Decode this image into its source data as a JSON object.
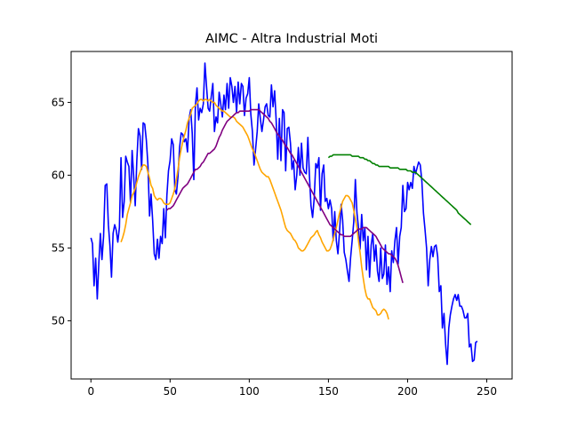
{
  "chart_data": {
    "type": "line",
    "title": "AIMC - Altra Industrial Moti",
    "xlabel": "",
    "ylabel": "",
    "xlim": [
      -12.5,
      266
    ],
    "ylim": [
      46.0,
      68.5
    ],
    "x_ticks": [
      0,
      50,
      100,
      150,
      200,
      250
    ],
    "y_ticks": [
      50,
      55,
      60,
      65
    ],
    "grid": false,
    "legend": "none",
    "series": [
      {
        "color": "#0000ff",
        "x0": 0,
        "values": [
          55.7,
          55.3,
          52.4,
          54.3,
          51.5,
          54.0,
          56.0,
          54.2,
          55.8,
          59.3,
          59.4,
          56.6,
          55.2,
          53.0,
          56.0,
          56.6,
          56.2,
          55.4,
          56.4,
          61.2,
          57.1,
          58.2,
          61.3,
          60.9,
          60.6,
          58.1,
          61.7,
          60.0,
          57.9,
          61.0,
          63.2,
          62.7,
          60.4,
          63.6,
          63.5,
          62.4,
          60.7,
          57.2,
          58.7,
          56.9,
          54.6,
          54.2,
          55.6,
          54.3,
          55.8,
          55.3,
          57.7,
          55.7,
          58.6,
          60.3,
          61.0,
          62.5,
          62.1,
          59.0,
          58.7,
          59.9,
          61.9,
          62.9,
          62.8,
          62.3,
          62.5,
          61.6,
          63.9,
          64.5,
          62.9,
          59.7,
          64.8,
          66.0,
          63.8,
          64.6,
          64.3,
          64.9,
          67.7,
          66.1,
          64.6,
          64.4,
          65.4,
          66.3,
          63.0,
          64.0,
          63.6,
          65.7,
          64.9,
          64.0,
          65.5,
          64.5,
          66.3,
          64.6,
          66.7,
          66.1,
          65.0,
          66.1,
          64.3,
          66.4,
          64.9,
          66.3,
          66.1,
          64.1,
          65.3,
          65.6,
          66.7,
          64.2,
          63.0,
          60.7,
          61.8,
          63.0,
          64.9,
          63.9,
          63.0,
          63.8,
          64.7,
          64.9,
          64.1,
          64.0,
          66.2,
          64.7,
          65.8,
          63.8,
          61.1,
          63.9,
          61.0,
          64.5,
          64.3,
          60.3,
          63.2,
          63.3,
          62.2,
          60.4,
          61.0,
          59.0,
          60.0,
          61.9,
          60.0,
          62.2,
          60.5,
          60.2,
          60.1,
          62.6,
          60.0,
          57.9,
          57.1,
          58.4,
          60.8,
          60.5,
          61.2,
          57.6,
          60.1,
          60.7,
          58.2,
          58.4,
          57.7,
          58.3,
          57.7,
          55.5,
          57.5,
          55.5,
          54.6,
          56.1,
          58.0,
          56.9,
          54.7,
          54.2,
          53.4,
          52.7,
          54.3,
          55.5,
          56.8,
          59.7,
          57.4,
          56.4,
          54.9,
          57.3,
          55.5,
          56.4,
          53.5,
          55.8,
          53.0,
          55.2,
          56.0,
          54.1,
          55.2,
          53.4,
          52.7,
          55.0,
          52.9,
          53.2,
          55.2,
          52.5,
          53.7,
          52.0,
          54.8,
          54.0,
          55.5,
          56.4,
          53.9,
          55.8,
          56.4,
          59.3,
          57.5,
          57.7,
          59.5,
          59.0,
          59.5,
          59.1,
          60.6,
          60.1,
          60.5,
          60.9,
          60.7,
          59.6,
          57.4,
          56.3,
          55.0,
          52.4,
          54.2,
          55.1,
          54.4,
          55.1,
          55.2,
          54.4,
          52.0,
          52.4,
          49.5,
          50.5,
          48.4,
          47.0,
          49.5,
          50.4,
          51.0,
          51.5,
          51.8,
          51.4,
          51.8,
          51.0,
          51.0,
          50.7,
          50.2,
          50.2,
          50.5,
          48.2,
          48.4,
          47.2,
          47.3,
          48.5,
          48.6
        ]
      },
      {
        "color": "#ffa500",
        "x0": 19,
        "values": [
          55.4,
          55.7,
          56.1,
          56.6,
          57.3,
          57.7,
          58.1,
          58.6,
          58.8,
          59.1,
          59.5,
          59.9,
          60.2,
          60.5,
          60.7,
          60.7,
          60.6,
          60.2,
          59.8,
          59.3,
          59.1,
          58.6,
          58.4,
          58.3,
          58.4,
          58.4,
          58.3,
          58.1,
          58.0,
          58.0,
          58.0,
          58.1,
          58.4,
          58.7,
          59.1,
          59.7,
          60.4,
          61.2,
          61.8,
          62.3,
          62.7,
          63.1,
          63.6,
          63.9,
          64.2,
          64.6,
          64.7,
          64.8,
          64.9,
          65.1,
          65.2,
          65.2,
          65.1,
          65.2,
          65.2,
          65.1,
          65.2,
          65.1,
          65.0,
          65.0,
          64.8,
          64.7,
          64.6,
          64.5,
          64.4,
          64.4,
          64.3,
          64.2,
          64.1,
          64.0,
          64.0,
          64.0,
          63.9,
          63.7,
          63.6,
          63.5,
          63.4,
          63.3,
          63.1,
          62.9,
          62.7,
          62.4,
          62.1,
          61.8,
          61.6,
          61.3,
          61.0,
          60.7,
          60.4,
          60.2,
          60.1,
          60.0,
          59.9,
          59.9,
          59.7,
          59.4,
          59.1,
          58.8,
          58.5,
          58.2,
          57.9,
          57.6,
          57.2,
          56.8,
          56.4,
          56.2,
          56.1,
          56.0,
          55.8,
          55.6,
          55.5,
          55.3,
          55.0,
          54.9,
          54.8,
          54.8,
          54.9,
          55.1,
          55.3,
          55.5,
          55.7,
          55.8,
          55.9,
          56.1,
          56.2,
          55.9,
          55.7,
          55.4,
          55.2,
          55.0,
          54.8,
          54.8,
          54.9,
          55.2,
          55.6,
          56.0,
          56.4,
          56.9,
          57.4,
          57.8,
          58.2,
          58.4,
          58.6,
          58.6,
          58.5,
          58.3,
          58.1,
          57.6,
          57.0,
          56.4,
          55.5,
          54.7,
          53.7,
          52.9,
          52.2,
          51.7,
          51.5,
          51.5,
          51.2,
          50.9,
          50.8,
          50.7,
          50.4,
          50.4,
          50.5,
          50.7,
          50.8,
          50.7,
          50.5,
          50.1
        ]
      },
      {
        "color": "#800080",
        "x0": 48,
        "values": [
          57.6,
          57.7,
          57.7,
          57.8,
          57.9,
          58.1,
          58.3,
          58.5,
          58.7,
          58.9,
          59.1,
          59.2,
          59.3,
          59.4,
          59.6,
          59.8,
          60.0,
          60.2,
          60.4,
          60.4,
          60.5,
          60.6,
          60.8,
          60.9,
          61.1,
          61.3,
          61.5,
          61.5,
          61.6,
          61.7,
          61.8,
          62.0,
          62.3,
          62.6,
          62.8,
          63.1,
          63.3,
          63.5,
          63.7,
          63.8,
          63.9,
          64.0,
          64.1,
          64.2,
          64.3,
          64.3,
          64.4,
          64.4,
          64.4,
          64.4,
          64.4,
          64.4,
          64.4,
          64.5,
          64.5,
          64.5,
          64.5,
          64.5,
          64.5,
          64.4,
          64.3,
          64.2,
          64.1,
          64.0,
          63.9,
          63.7,
          63.6,
          63.4,
          63.2,
          63.0,
          62.8,
          62.7,
          62.5,
          62.4,
          62.2,
          62.0,
          61.9,
          61.7,
          61.5,
          61.4,
          61.2,
          61.0,
          60.8,
          60.6,
          60.4,
          60.2,
          60.0,
          59.8,
          59.6,
          59.4,
          59.2,
          59.0,
          58.8,
          58.6,
          58.4,
          58.2,
          58.0,
          57.8,
          57.6,
          57.4,
          57.2,
          57.0,
          56.8,
          56.6,
          56.5,
          56.4,
          56.3,
          56.2,
          56.1,
          56.0,
          55.9,
          55.9,
          55.8,
          55.8,
          55.8,
          55.8,
          55.8,
          55.9,
          56.0,
          56.1,
          56.2,
          56.3,
          56.3,
          56.3,
          56.4,
          56.4,
          56.4,
          56.3,
          56.2,
          56.1,
          56.0,
          55.9,
          55.8,
          55.6,
          55.4,
          55.2,
          55.0,
          54.9,
          54.8,
          54.7,
          54.6,
          54.6,
          54.5,
          54.4,
          54.3,
          54.1,
          53.8,
          53.4,
          53.0,
          52.6
        ]
      },
      {
        "color": "#008000",
        "x0": 150,
        "values": [
          61.2,
          61.3,
          61.3,
          61.4,
          61.4,
          61.4,
          61.4,
          61.4,
          61.4,
          61.4,
          61.4,
          61.4,
          61.4,
          61.4,
          61.4,
          61.3,
          61.3,
          61.3,
          61.3,
          61.3,
          61.2,
          61.2,
          61.2,
          61.1,
          61.1,
          61.0,
          61.0,
          60.9,
          60.8,
          60.8,
          60.7,
          60.7,
          60.6,
          60.6,
          60.6,
          60.6,
          60.6,
          60.6,
          60.6,
          60.5,
          60.5,
          60.5,
          60.5,
          60.5,
          60.5,
          60.4,
          60.4,
          60.4,
          60.4,
          60.4,
          60.3,
          60.3,
          60.3,
          60.2,
          60.2,
          60.2,
          60.1,
          60.0,
          59.9,
          59.8,
          59.7,
          59.6,
          59.5,
          59.4,
          59.3,
          59.2,
          59.1,
          59.0,
          58.9,
          58.8,
          58.7,
          58.6,
          58.5,
          58.4,
          58.3,
          58.2,
          58.1,
          58.0,
          57.9,
          57.8,
          57.7,
          57.6,
          57.4,
          57.3,
          57.2,
          57.1,
          57.0,
          56.9,
          56.8,
          56.7,
          56.6
        ]
      }
    ]
  }
}
